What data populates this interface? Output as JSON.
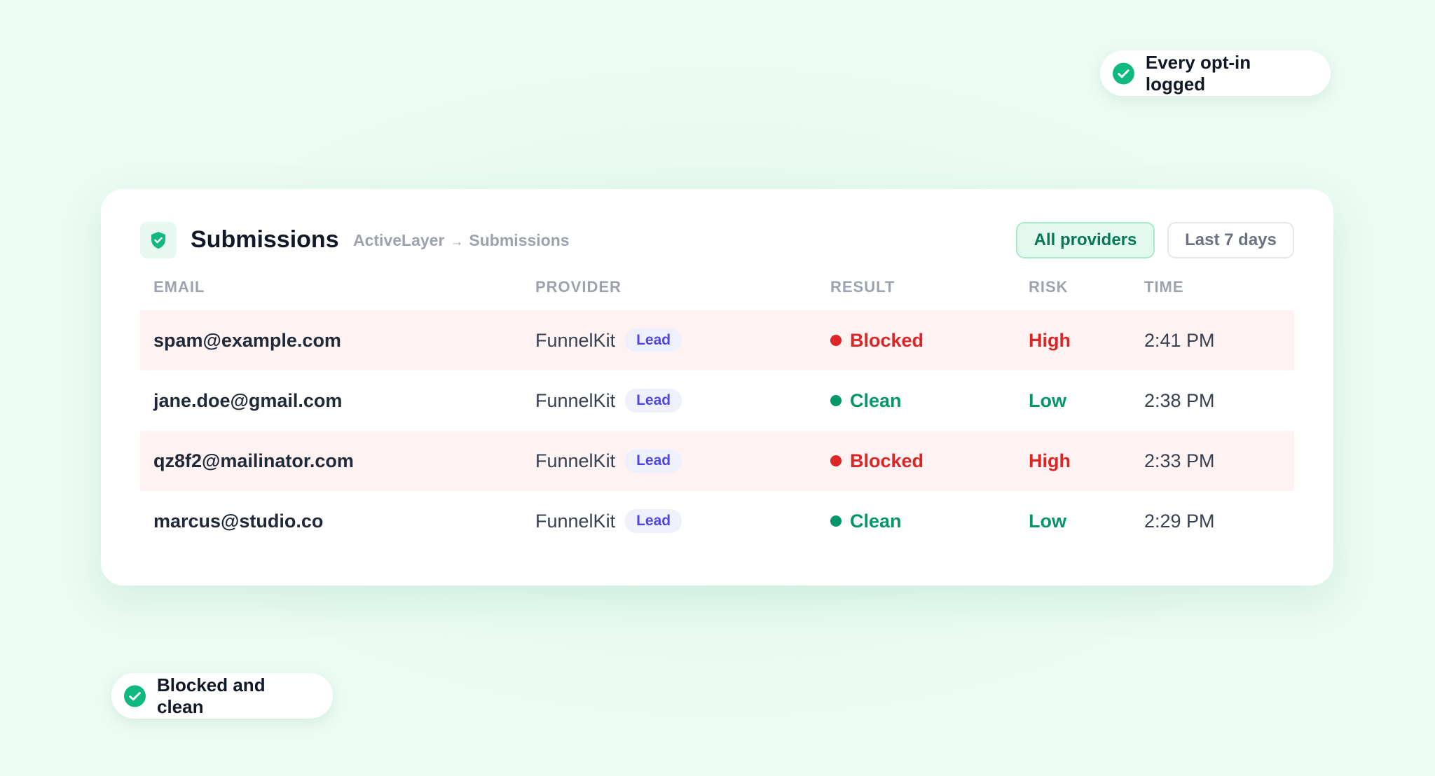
{
  "badges": {
    "top": "Every opt-in logged",
    "bottom": "Blocked and clean"
  },
  "header": {
    "title": "Submissions",
    "breadcrumb": [
      "ActiveLayer",
      "→",
      "Submissions"
    ],
    "filters": [
      "All providers",
      "Last 7 days"
    ]
  },
  "table": {
    "columns": [
      "EMAIL",
      "PROVIDER",
      "RESULT",
      "RISK",
      "TIME"
    ],
    "rows": [
      {
        "email": "spam@example.com",
        "provider": "FunnelKit",
        "tag": "Lead",
        "result": "Blocked",
        "risk": "High",
        "time": "2:41 PM",
        "status": "blocked"
      },
      {
        "email": "jane.doe@gmail.com",
        "provider": "FunnelKit",
        "tag": "Lead",
        "result": "Clean",
        "risk": "Low",
        "time": "2:38 PM",
        "status": "clean"
      },
      {
        "email": "qz8f2@mailinator.com",
        "provider": "FunnelKit",
        "tag": "Lead",
        "result": "Blocked",
        "risk": "High",
        "time": "2:33 PM",
        "status": "blocked"
      },
      {
        "email": "marcus@studio.co",
        "provider": "FunnelKit",
        "tag": "Lead",
        "result": "Clean",
        "risk": "Low",
        "time": "2:29 PM",
        "status": "clean"
      }
    ]
  }
}
